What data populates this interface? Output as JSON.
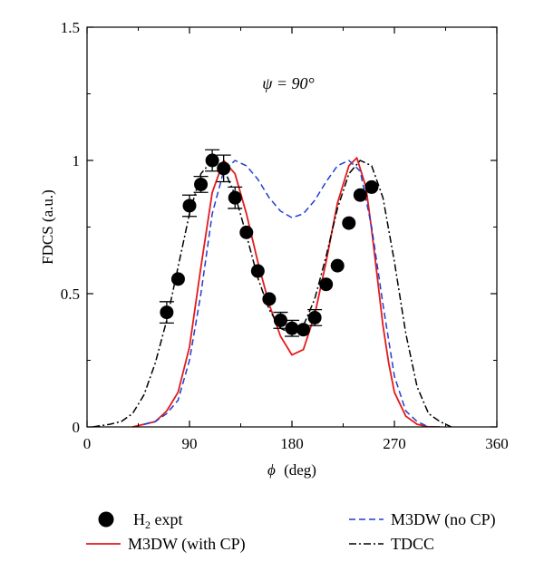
{
  "chart_data": {
    "type": "line",
    "annotation": "ψ = 90°",
    "xlabel": "(deg)",
    "xlabel_symbol": "ϕ",
    "ylabel": "FDCS (a.u.)",
    "xlim": [
      0,
      360
    ],
    "ylim": [
      0,
      1.5
    ],
    "x_ticks": [
      0,
      90,
      180,
      270,
      360
    ],
    "y_ticks": [
      0,
      0.5,
      1,
      1.5
    ],
    "x_tick_labels": [
      "0",
      "90",
      "180",
      "270",
      "360"
    ],
    "y_tick_labels": [
      "0",
      "0.5",
      "1",
      "1.5"
    ],
    "grid": false,
    "legend_position": "bottom",
    "series": [
      {
        "name": "H2 expt",
        "name_main": "H",
        "name_sub": "2",
        "name_rest": " expt",
        "style": "markers-errorbars",
        "color": "#000000",
        "points": [
          {
            "x": 70,
            "y": 0.43,
            "err": 0.04
          },
          {
            "x": 80,
            "y": 0.555
          },
          {
            "x": 90,
            "y": 0.83,
            "err": 0.04
          },
          {
            "x": 100,
            "y": 0.91,
            "err": 0.03
          },
          {
            "x": 110,
            "y": 1.0,
            "err": 0.04
          },
          {
            "x": 120,
            "y": 0.97,
            "err": 0.05
          },
          {
            "x": 130,
            "y": 0.86,
            "err": 0.04
          },
          {
            "x": 140,
            "y": 0.73
          },
          {
            "x": 150,
            "y": 0.585
          },
          {
            "x": 160,
            "y": 0.48
          },
          {
            "x": 170,
            "y": 0.4,
            "err": 0.03
          },
          {
            "x": 180,
            "y": 0.37,
            "err": 0.03
          },
          {
            "x": 190,
            "y": 0.365
          },
          {
            "x": 200,
            "y": 0.41,
            "err": 0.03
          },
          {
            "x": 210,
            "y": 0.535
          },
          {
            "x": 220,
            "y": 0.605
          },
          {
            "x": 230,
            "y": 0.765
          },
          {
            "x": 240,
            "y": 0.87
          },
          {
            "x": 250,
            "y": 0.9
          }
        ]
      },
      {
        "name": "M3DW (with CP)",
        "style": "solid",
        "color": "#e41a1c",
        "x": [
          40,
          50,
          60,
          70,
          80,
          90,
          100,
          110,
          120,
          130,
          140,
          150,
          160,
          170,
          180,
          190,
          200,
          210,
          220,
          230,
          237,
          245,
          250,
          255,
          260,
          265,
          270,
          280,
          290,
          300,
          310
        ],
        "y": [
          0.0,
          0.01,
          0.02,
          0.06,
          0.13,
          0.3,
          0.6,
          0.88,
          1.0,
          0.95,
          0.8,
          0.62,
          0.46,
          0.34,
          0.27,
          0.29,
          0.42,
          0.62,
          0.84,
          0.98,
          1.01,
          0.9,
          0.74,
          0.56,
          0.38,
          0.24,
          0.13,
          0.04,
          0.01,
          0.0,
          0.0
        ]
      },
      {
        "name": "M3DW (no CP)",
        "style": "dashed",
        "color": "#1f3fcf",
        "x": [
          50,
          60,
          70,
          80,
          90,
          100,
          110,
          120,
          130,
          140,
          150,
          160,
          170,
          180,
          190,
          200,
          210,
          220,
          230,
          240,
          250,
          260,
          270,
          280,
          290,
          300,
          310
        ],
        "y": [
          0.01,
          0.02,
          0.05,
          0.1,
          0.25,
          0.5,
          0.8,
          0.96,
          1.0,
          0.98,
          0.93,
          0.86,
          0.81,
          0.785,
          0.8,
          0.85,
          0.92,
          0.98,
          1.0,
          0.96,
          0.75,
          0.46,
          0.19,
          0.06,
          0.02,
          0.0,
          0.0
        ]
      },
      {
        "name": "TDCC",
        "style": "dashdot",
        "color": "#000000",
        "x": [
          5,
          20,
          30,
          40,
          50,
          60,
          70,
          80,
          90,
          100,
          110,
          120,
          130,
          140,
          150,
          160,
          170,
          180,
          190,
          200,
          210,
          220,
          230,
          240,
          250,
          260,
          270,
          280,
          290,
          300,
          310,
          320
        ],
        "y": [
          0.0,
          0.01,
          0.02,
          0.05,
          0.12,
          0.24,
          0.4,
          0.6,
          0.8,
          0.95,
          1.0,
          0.97,
          0.87,
          0.72,
          0.56,
          0.44,
          0.37,
          0.35,
          0.38,
          0.48,
          0.64,
          0.82,
          0.95,
          1.0,
          0.98,
          0.86,
          0.62,
          0.35,
          0.15,
          0.05,
          0.02,
          0.0
        ]
      }
    ]
  }
}
